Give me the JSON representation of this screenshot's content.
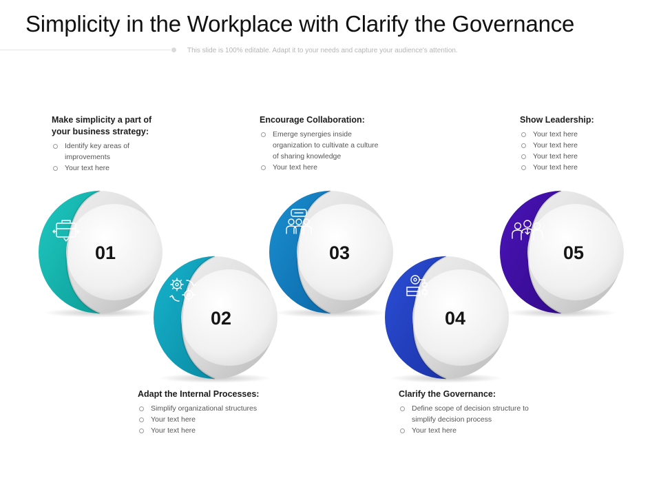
{
  "title": "Simplicity in the Workplace with Clarify the Governance",
  "subtitle": "This slide is 100% editable. Adapt it to your needs and capture your audience's attention.",
  "steps": [
    {
      "number": "01",
      "heading": "Make simplicity a part of your business strategy:",
      "bullets": [
        "Identify key areas of improvements",
        "Your text here"
      ],
      "color": "#1ec9c0",
      "color_dark": "#0e9c98",
      "icon": "briefcase-arrows-icon"
    },
    {
      "number": "02",
      "heading": "Adapt the Internal Processes:",
      "bullets": [
        "Simplify organizational structures",
        "Your text here",
        "Your text here"
      ],
      "color": "#17b3cc",
      "color_dark": "#0a8aa3",
      "icon": "gears-cycle-icon"
    },
    {
      "number": "03",
      "heading": "Encourage Collaboration:",
      "bullets": [
        "Emerge synergies inside organization to cultivate a culture of sharing knowledge",
        "Your text here"
      ],
      "color": "#1a8fd0",
      "color_dark": "#0c68a8",
      "icon": "team-collaboration-icon"
    },
    {
      "number": "04",
      "heading": "Clarify the Governance:",
      "bullets": [
        "Define scope of decision structure to simplify decision process",
        "Your text here"
      ],
      "color": "#2b4fd6",
      "color_dark": "#1b33a8",
      "icon": "governance-flow-icon"
    },
    {
      "number": "05",
      "heading": "Show Leadership:",
      "bullets": [
        "Your text here",
        "Your text here",
        "Your text here",
        "Your text here"
      ],
      "color": "#4a14b8",
      "color_dark": "#330a8a",
      "icon": "leadership-group-icon"
    }
  ]
}
